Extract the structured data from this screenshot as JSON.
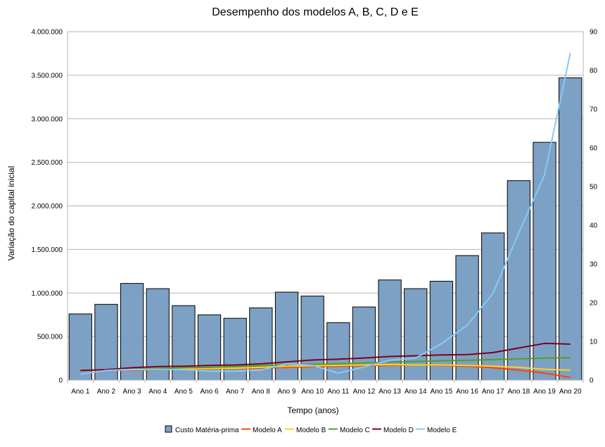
{
  "chart_data": {
    "type": "bar",
    "title": "Desempenho dos modelos A, B, C, D e E",
    "xlabel": "Tempo (anos)",
    "ylabel": "Variação do capital inicial",
    "categories": [
      "Ano 1",
      "Ano 2",
      "Ano 3",
      "Ano 4",
      "Ano 5",
      "Ano 6",
      "Ano 7",
      "Ano 8",
      "Ano 9",
      "Ano 10",
      "Ano 11",
      "Ano 12",
      "Ano 13",
      "Ano 14",
      "Ano 15",
      "Ano 16",
      "Ano 17",
      "Ano 18",
      "Ano 19",
      "Ano 20"
    ],
    "ylim": [
      0,
      4000000
    ],
    "y_ticks": [
      0,
      500000,
      1000000,
      1500000,
      2000000,
      2500000,
      3000000,
      3500000,
      4000000
    ],
    "y_tick_labels": [
      "0",
      "500.000",
      "1.000.000",
      "1.500.000",
      "2.000.000",
      "2.500.000",
      "3.000.000",
      "3.500.000",
      "4.000.000"
    ],
    "y2lim": [
      0,
      90
    ],
    "y2_ticks": [
      0,
      10,
      20,
      30,
      40,
      50,
      60,
      70,
      80,
      90
    ],
    "y2_tick_labels": [
      "0",
      "10",
      "20",
      "30",
      "40",
      "50",
      "60",
      "70",
      "80",
      "90"
    ],
    "grid": true,
    "legend_position": "bottom",
    "bar_series": {
      "name": "Custo Matéria-prima",
      "color": "#7da1c4",
      "values": [
        760000,
        870000,
        1110000,
        1050000,
        855000,
        750000,
        710000,
        830000,
        1010000,
        965000,
        660000,
        840000,
        1150000,
        1050000,
        1135000,
        1430000,
        1690000,
        2290000,
        2730000,
        3470000
      ]
    },
    "line_series": [
      {
        "name": "Modelo A",
        "color": "#ff420e",
        "axis": "right",
        "values": [
          2.5,
          2.6,
          2.6,
          2.7,
          2.8,
          2.9,
          3.0,
          3.1,
          3.3,
          3.5,
          3.6,
          3.7,
          3.8,
          3.9,
          3.8,
          3.6,
          3.2,
          2.6,
          1.8,
          0.7
        ]
      },
      {
        "name": "Modelo B",
        "color": "#ffd320",
        "axis": "right",
        "values": [
          2.5,
          2.6,
          2.7,
          2.8,
          2.9,
          3.0,
          3.1,
          3.3,
          3.6,
          3.7,
          3.8,
          3.9,
          4.0,
          3.9,
          3.9,
          3.8,
          3.6,
          3.3,
          2.8,
          2.6
        ]
      },
      {
        "name": "Modelo C",
        "color": "#579d1c",
        "axis": "right",
        "values": [
          2.5,
          2.7,
          2.9,
          3.0,
          3.2,
          3.3,
          3.5,
          3.7,
          4.0,
          4.1,
          4.2,
          4.4,
          4.7,
          4.8,
          5.0,
          5.1,
          5.3,
          5.5,
          5.7,
          5.8
        ]
      },
      {
        "name": "Modelo D",
        "color": "#7e0021",
        "axis": "right",
        "values": [
          2.5,
          2.7,
          3.2,
          3.5,
          3.6,
          3.8,
          3.9,
          4.2,
          4.7,
          5.2,
          5.4,
          5.7,
          6.1,
          6.3,
          6.5,
          6.6,
          7.1,
          8.3,
          9.5,
          9.3
        ]
      },
      {
        "name": "Modelo E",
        "color": "#83caff",
        "axis": "right",
        "values": [
          1.5,
          2.5,
          2.8,
          2.8,
          2.7,
          2.3,
          2.3,
          2.6,
          4.2,
          3.8,
          1.8,
          3.4,
          5.1,
          5.7,
          9.4,
          14.2,
          22.4,
          38.0,
          53.0,
          84.5
        ]
      }
    ]
  }
}
